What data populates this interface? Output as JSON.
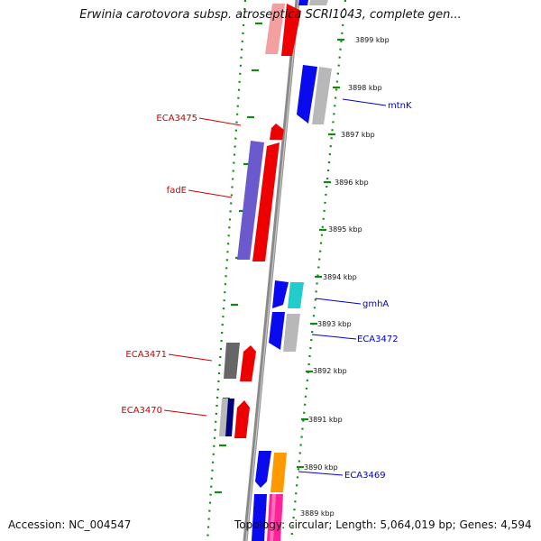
{
  "title": "Erwinia carotovora subsp. atroseptica SCRI1043, complete gen...",
  "accession": "Accession: NC_004547",
  "summary": "Topology: circular; Length: 5,064,019 bp; Genes: 4,594",
  "ticks": [
    {
      "kbp": 3899,
      "label": "3899 kbp"
    },
    {
      "kbp": 3898,
      "label": "3898 kbp"
    },
    {
      "kbp": 3897,
      "label": "3897 kbp"
    },
    {
      "kbp": 3896,
      "label": "3896 kbp"
    },
    {
      "kbp": 3895,
      "label": "3895 kbp"
    },
    {
      "kbp": 3894,
      "label": "3894 kbp"
    },
    {
      "kbp": 3893,
      "label": "3893 kbp"
    },
    {
      "kbp": 3892,
      "label": "3892 kbp"
    },
    {
      "kbp": 3891,
      "label": "3891 kbp"
    },
    {
      "kbp": 3890,
      "label": "3890 kbp"
    },
    {
      "kbp": 3889,
      "label": "3889 kbp"
    }
  ],
  "gene_labels": {
    "ECA3475": "ECA3475",
    "fadE": "fadE",
    "ECA3471": "ECA3471",
    "ECA3470": "ECA3470",
    "mtnK": "mtnK",
    "gmhA": "gmhA",
    "ECA3472": "ECA3472",
    "ECA3469": "ECA3469"
  },
  "colors": {
    "reverse_label": "#cc0000",
    "forward_label": "#0000cc",
    "tick_mark": "#118811",
    "backbone": "#8a8a8a",
    "red": "#ee0000",
    "pink": "#f4a0a0",
    "blue": "#0a0aee",
    "purple": "#6a5acd",
    "gray": "#b8b8b8",
    "dark_gray": "#666666",
    "navy": "#000080",
    "cyan": "#22cccc",
    "orange": "#ff9900",
    "magenta": "#ff2299"
  }
}
